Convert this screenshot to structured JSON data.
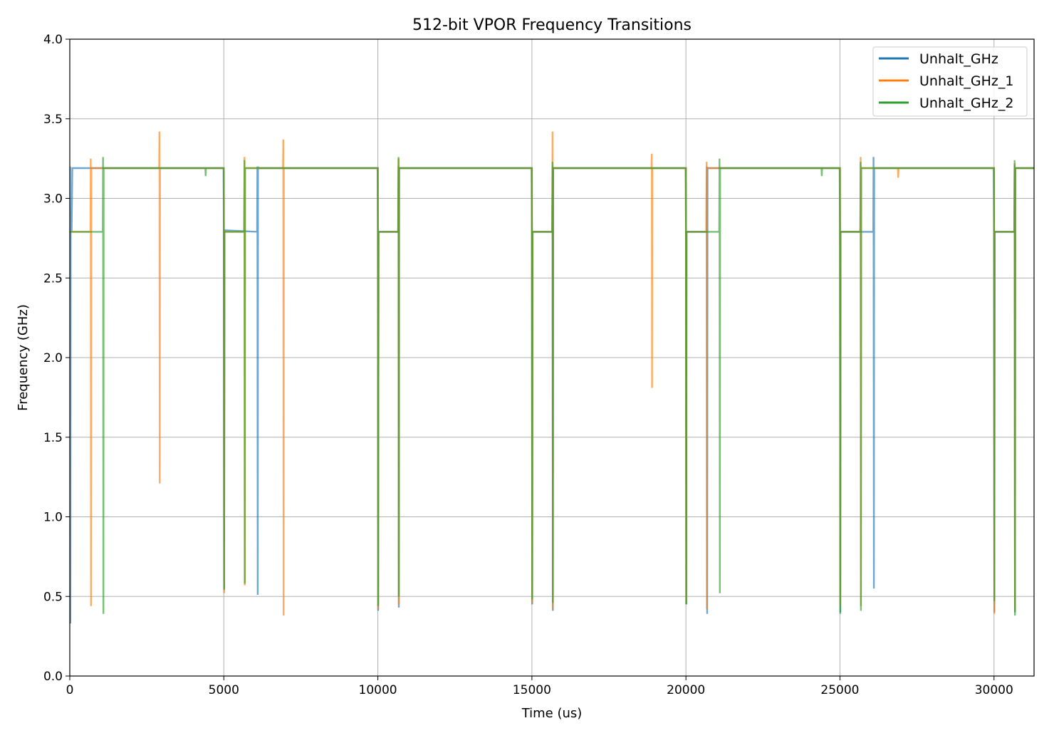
{
  "chart_data": {
    "type": "line",
    "title": "512-bit VPOR Frequency Transitions",
    "xlabel": "Time (us)",
    "ylabel": "Frequency (GHz)",
    "xlim": [
      0,
      31300
    ],
    "ylim": [
      0.0,
      4.0
    ],
    "grid": true,
    "legend_position": "top-right",
    "x_ticks": [
      0,
      5000,
      10000,
      15000,
      20000,
      25000,
      30000
    ],
    "x_tick_labels": [
      "0",
      "5000",
      "10000",
      "15000",
      "20000",
      "25000",
      "30000"
    ],
    "y_ticks": [
      0.0,
      0.5,
      1.0,
      1.5,
      2.0,
      2.5,
      3.0,
      3.5,
      4.0
    ],
    "y_tick_labels": [
      "0.0",
      "0.5",
      "1.0",
      "1.5",
      "2.0",
      "2.5",
      "3.0",
      "3.5",
      "4.0"
    ],
    "series": [
      {
        "name": "Unhalt_GHz",
        "color": "#1f77b4",
        "x": [
          0,
          10,
          20,
          30,
          40,
          60,
          80,
          4990,
          5000,
          5010,
          5020,
          6080,
          6090,
          6100,
          6110,
          6120,
          9990,
          10000,
          10010,
          10020,
          10660,
          10670,
          10680,
          10690,
          14990,
          15000,
          15010,
          15020,
          15660,
          15670,
          15680,
          15690,
          19990,
          20000,
          20010,
          20020,
          20670,
          20680,
          20690,
          20700,
          24990,
          25000,
          25010,
          25020,
          26080,
          26090,
          26100,
          26110,
          29990,
          30000,
          30010,
          30020,
          30660,
          30670,
          30680,
          30690,
          31300
        ],
        "values": [
          2.79,
          3.2,
          0.33,
          2.79,
          2.8,
          2.8,
          3.19,
          3.19,
          2.79,
          0.55,
          2.8,
          2.79,
          3.2,
          0.51,
          3.2,
          3.19,
          3.19,
          2.79,
          0.41,
          2.79,
          2.79,
          3.2,
          0.43,
          3.19,
          3.19,
          2.79,
          0.45,
          2.79,
          2.79,
          3.2,
          0.41,
          3.19,
          3.19,
          2.79,
          0.45,
          2.79,
          2.79,
          3.2,
          0.39,
          3.19,
          3.19,
          2.79,
          0.4,
          2.79,
          2.79,
          3.26,
          0.55,
          3.19,
          3.19,
          2.79,
          0.4,
          2.79,
          2.79,
          3.21,
          0.4,
          3.19,
          3.19
        ]
      },
      {
        "name": "Unhalt_GHz_1",
        "color": "#ff7f0e",
        "x": [
          0,
          670,
          680,
          690,
          700,
          2900,
          2910,
          2920,
          2930,
          5000,
          5010,
          5020,
          5660,
          5670,
          5680,
          5690,
          6920,
          6930,
          6940,
          6950,
          10000,
          10010,
          10020,
          10660,
          10670,
          10680,
          10690,
          15000,
          15010,
          15020,
          15660,
          15670,
          15680,
          15690,
          18880,
          18890,
          18900,
          18910,
          20000,
          20010,
          20020,
          20660,
          20670,
          20680,
          20690,
          25000,
          25010,
          25020,
          25660,
          25670,
          25680,
          25690,
          26880,
          26890,
          26900,
          30000,
          30010,
          30020,
          30660,
          30670,
          30680,
          30690,
          31300
        ],
        "values": [
          2.79,
          2.79,
          3.25,
          0.44,
          3.19,
          3.19,
          3.42,
          1.21,
          3.19,
          3.19,
          0.52,
          2.79,
          2.79,
          3.26,
          0.57,
          3.19,
          3.19,
          3.37,
          0.38,
          3.19,
          3.19,
          0.42,
          2.79,
          2.79,
          3.25,
          0.45,
          3.19,
          3.19,
          0.46,
          2.79,
          2.79,
          3.42,
          0.42,
          3.19,
          3.19,
          3.28,
          1.81,
          3.19,
          3.19,
          0.46,
          2.79,
          2.79,
          3.23,
          0.42,
          3.19,
          3.19,
          0.44,
          2.79,
          2.79,
          3.26,
          0.44,
          3.19,
          3.19,
          3.13,
          3.19,
          3.19,
          0.39,
          2.79,
          2.79,
          3.22,
          0.41,
          3.19,
          3.19
        ]
      },
      {
        "name": "Unhalt_GHz_2",
        "color": "#2ca02c",
        "x": [
          0,
          1070,
          1080,
          1090,
          1100,
          4400,
          4410,
          4420,
          5000,
          5010,
          5020,
          5660,
          5670,
          5680,
          5690,
          10000,
          10010,
          10020,
          10660,
          10670,
          10680,
          10690,
          15000,
          15010,
          15020,
          15660,
          15670,
          15680,
          15690,
          20000,
          20010,
          20020,
          21080,
          21090,
          21100,
          21110,
          24400,
          24410,
          24420,
          25000,
          25010,
          25020,
          25660,
          25670,
          25680,
          25690,
          30000,
          30010,
          30020,
          30660,
          30670,
          30680,
          30690,
          31300
        ],
        "values": [
          2.79,
          2.79,
          3.26,
          0.39,
          3.19,
          3.19,
          3.14,
          3.19,
          3.19,
          0.54,
          2.79,
          2.79,
          3.24,
          0.58,
          3.19,
          3.19,
          0.44,
          2.79,
          2.79,
          3.26,
          0.5,
          3.19,
          3.19,
          0.48,
          2.79,
          2.79,
          3.23,
          0.46,
          3.19,
          3.19,
          0.45,
          2.79,
          2.79,
          3.25,
          0.52,
          3.19,
          3.19,
          3.14,
          3.19,
          3.19,
          0.39,
          2.79,
          2.79,
          3.23,
          0.41,
          3.19,
          3.19,
          0.47,
          2.79,
          2.79,
          3.24,
          0.38,
          3.19,
          3.19
        ]
      }
    ]
  }
}
